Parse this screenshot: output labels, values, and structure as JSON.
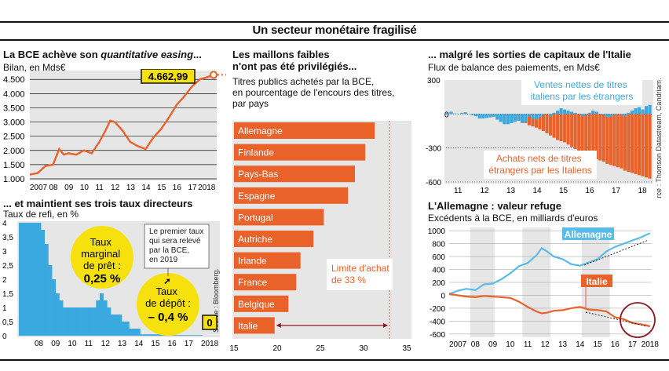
{
  "page_title": "Un secteur monétaire fragilisé",
  "panels": {
    "bce": {
      "title_1": "La BCE achève son ",
      "title_em": "quantitative easing",
      "title_2": "...",
      "subtitle": "Bilan, en Mds€",
      "last_value": "4.662,99"
    },
    "taux": {
      "title": "... et maintient ses trois taux directeurs",
      "subtitle": "Taux de refi, en %",
      "bubble_marginal": [
        "Taux",
        "marginal",
        "de prêt :"
      ],
      "bubble_marginal_value": "0,25 %",
      "bubble_depot": [
        "Taux",
        "de dépôt :"
      ],
      "bubble_depot_value": "– 0,4 %",
      "callout": [
        "Le premier taux",
        "qui sera relevé",
        "par la BCE,",
        "en 2019"
      ],
      "refi_value": "0",
      "source": "Source : Bloomberg."
    },
    "maillons": {
      "title_1": "Les maillons faibles",
      "title_2": "n'ont pas été privilégiés...",
      "subtitle": [
        "Titres publics achetés par la BCE,",
        "en pourcentage de l'encours des titres,",
        "par pays"
      ],
      "limit_label": [
        "Limite d'achat",
        "de 33 %"
      ]
    },
    "italie": {
      "title": "... malgré les sorties de capitaux de l'Italie",
      "subtitle": "Flux de balance des paiements, en Mds€",
      "label_top": [
        "Ventes nettes de titres",
        "italiens par les étrangers"
      ],
      "label_bottom": [
        "Achats nets de titres",
        "étrangers par les Italiens"
      ],
      "source": "Source : Thomson Datastream, Candriam."
    },
    "allemagne": {
      "title": "L'Allemagne : valeur refuge",
      "subtitle": "Excédents à la BCE, en milliards d'euros",
      "label_de": "Allemagne",
      "label_it": "Italie"
    }
  },
  "colors": {
    "orange": "#e8622a",
    "blue": "#3aa9df",
    "light_blue": "#5bbbe8",
    "yellow": "#f6e10f",
    "panel_bg": "#e6e6e6"
  },
  "chart_data": [
    {
      "id": "bce-bilan",
      "type": "line",
      "title": "La BCE achève son quantitative easing...",
      "ylabel": "Bilan, en Mds€",
      "x_ticks": [
        "2007",
        "08",
        "09",
        "10",
        "11",
        "12",
        "13",
        "14",
        "15",
        "16",
        "17",
        "2018"
      ],
      "y_ticks": [
        "1.000",
        "1.500",
        "2.000",
        "2.500",
        "3.000",
        "3.500",
        "4.000",
        "4.500"
      ],
      "ylim": [
        1000,
        4700
      ],
      "x": [
        2007,
        2007.5,
        2008,
        2008.5,
        2008.9,
        2009.2,
        2009.5,
        2010,
        2010.5,
        2011,
        2011.5,
        2011.9,
        2012.2,
        2012.5,
        2013,
        2013.5,
        2014,
        2014.5,
        2015,
        2015.5,
        2016,
        2016.5,
        2017,
        2017.5,
        2018,
        2018.5,
        2018.9
      ],
      "y": [
        1150,
        1200,
        1450,
        1500,
        2050,
        1850,
        1900,
        1850,
        2000,
        1900,
        2300,
        2700,
        3050,
        3000,
        2700,
        2300,
        2150,
        2050,
        2450,
        2750,
        3150,
        3600,
        3900,
        4250,
        4500,
        4580,
        4662.99
      ],
      "end_value": 4662.99
    },
    {
      "id": "taux-refi",
      "type": "bar",
      "title": "... et maintient ses trois taux directeurs",
      "ylabel": "Taux de refi, en %",
      "x_ticks": [
        "08",
        "09",
        "10",
        "11",
        "12",
        "13",
        "14",
        "15",
        "16",
        "17",
        "2018"
      ],
      "y_ticks": [
        "0",
        "0,5",
        "1",
        "1,5",
        "2",
        "2,5",
        "3",
        "3,5",
        "4"
      ],
      "ylim": [
        0,
        4
      ],
      "values": [
        4,
        4,
        4,
        4,
        4,
        4,
        3.75,
        3.25,
        2.5,
        2,
        1.5,
        1.25,
        1,
        1,
        1,
        1,
        1,
        1,
        1,
        1,
        1,
        1.25,
        1.5,
        1.25,
        1,
        0.75,
        0.75,
        0.75,
        0.5,
        0.5,
        0.25,
        0.25,
        0.25,
        0.05,
        0.05,
        0.05,
        0.05,
        0.05,
        0.05,
        0.05,
        0,
        0,
        0,
        0,
        0,
        0,
        0,
        0,
        0,
        0
      ],
      "end_value": 0
    },
    {
      "id": "titres-achetes",
      "type": "bar",
      "orientation": "horizontal",
      "title": "Les maillons faibles n'ont pas été privilégiés...",
      "categories": [
        "Allemagne",
        "Finlande",
        "Pays-Bas",
        "Espagne",
        "Portugal",
        "Autriche",
        "Irlande",
        "France",
        "Belgique",
        "Italie"
      ],
      "values": [
        31.3,
        30.2,
        29.0,
        28.2,
        25.4,
        24.2,
        22.7,
        22.2,
        21.3,
        19.7
      ],
      "x_ticks": [
        "15",
        "20",
        "25",
        "30",
        "35"
      ],
      "xlim": [
        15,
        35
      ],
      "limit": 33
    },
    {
      "id": "balance-paiements",
      "type": "bar",
      "title": "... malgré les sorties de capitaux de l'Italie",
      "ylabel": "Flux de balance des paiements, en Mds€",
      "x_ticks": [
        "11",
        "12",
        "13",
        "14",
        "15",
        "16",
        "17",
        "18"
      ],
      "y_ticks": [
        "300",
        "0",
        "-300",
        "-600"
      ],
      "ylim": [
        -600,
        300
      ],
      "series": [
        {
          "name": "Ventes nettes de titres italiens par les étrangers",
          "values": [
            10,
            20,
            5,
            0,
            10,
            15,
            0,
            -10,
            -20,
            -40,
            -40,
            -35,
            -30,
            -25,
            -50,
            -70,
            -90,
            -90,
            -80,
            -70,
            -60,
            -80,
            -70,
            -20,
            -40,
            -50,
            -30,
            -10,
            0,
            -20,
            10,
            30,
            50,
            40,
            30,
            20,
            10,
            0,
            -20,
            -10,
            10,
            30,
            20,
            0,
            -10,
            -30,
            -20,
            -10,
            0,
            -10,
            -20,
            10,
            30,
            50,
            60,
            40,
            70,
            80
          ]
        },
        {
          "name": "Achats nets de titres étrangers par les Italiens",
          "values": [
            0,
            0,
            0,
            0,
            0,
            0,
            0,
            0,
            0,
            0,
            0,
            0,
            0,
            0,
            0,
            0,
            -10,
            -20,
            -30,
            -40,
            -50,
            -60,
            -80,
            -100,
            -110,
            -120,
            -135,
            -150,
            -170,
            -190,
            -210,
            -230,
            -240,
            -250,
            -270,
            -290,
            -310,
            -330,
            -340,
            -350,
            -370,
            -380,
            -400,
            -410,
            -420,
            -440,
            -450,
            -460,
            -470,
            -480,
            -500,
            -510,
            -520,
            -530,
            -540,
            -550,
            -560,
            -570
          ]
        }
      ]
    },
    {
      "id": "target2",
      "type": "line",
      "title": "L'Allemagne : valeur refuge",
      "ylabel": "Excédents à la BCE, en milliards d'euros",
      "x_ticks": [
        "2007",
        "08",
        "09",
        "10",
        "11",
        "12",
        "13",
        "14",
        "15",
        "16",
        "17",
        "2018"
      ],
      "y_ticks": [
        "1000",
        "800",
        "600",
        "400",
        "200",
        "0",
        "-200",
        "-400",
        "-600"
      ],
      "ylim": [
        -650,
        1050
      ],
      "series": [
        {
          "name": "Allemagne",
          "x": [
            2007,
            2007.5,
            2008,
            2008.5,
            2009,
            2009.5,
            2010,
            2010.5,
            2011,
            2011.5,
            2012,
            2012.3,
            2012.6,
            2013,
            2013.5,
            2014,
            2014.5,
            2015,
            2015.5,
            2016,
            2016.5,
            2017,
            2017.5,
            2018,
            2018.5
          ],
          "y": [
            20,
            70,
            100,
            80,
            170,
            180,
            250,
            340,
            450,
            500,
            620,
            730,
            680,
            600,
            560,
            480,
            460,
            510,
            560,
            680,
            750,
            800,
            850,
            900,
            960
          ]
        },
        {
          "name": "Italie",
          "x": [
            2007,
            2007.5,
            2008,
            2008.5,
            2009,
            2009.5,
            2010,
            2010.5,
            2011,
            2011.5,
            2012,
            2012.3,
            2012.6,
            2013,
            2013.5,
            2014,
            2014.5,
            2015,
            2015.5,
            2016,
            2016.5,
            2017,
            2017.5,
            2018,
            2018.5
          ],
          "y": [
            20,
            0,
            -20,
            -30,
            -10,
            -20,
            -30,
            -40,
            -100,
            -180,
            -250,
            -280,
            -270,
            -240,
            -230,
            -200,
            -180,
            -220,
            -230,
            -250,
            -340,
            -370,
            -430,
            -450,
            -480
          ]
        }
      ]
    }
  ]
}
